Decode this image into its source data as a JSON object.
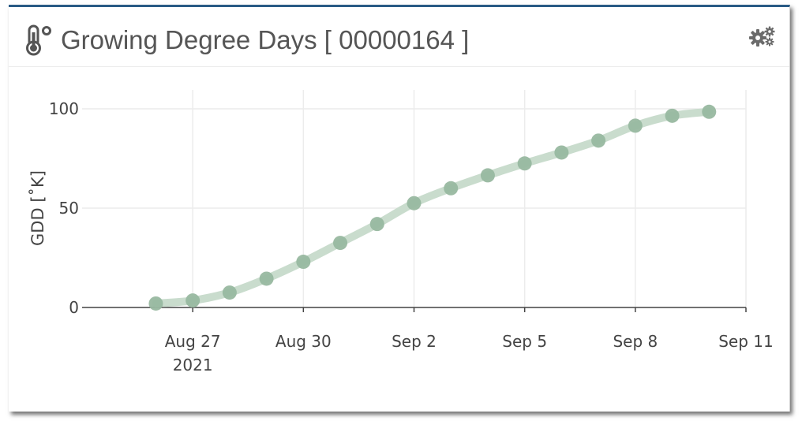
{
  "header": {
    "title": "Growing Degree Days [ 00000164 ]",
    "title_icon": "thermometer-degree-icon",
    "settings_icon": "gears-icon"
  },
  "colors": {
    "accent_border": "#2a5b86",
    "series_line": "#c9dccd",
    "series_marker": "#98b8a0",
    "text": "#444444"
  },
  "chart_data": {
    "type": "line",
    "ylabel": "GDD [˚K]",
    "xlabel": "",
    "ylim": [
      -3,
      104
    ],
    "xlim": [
      "2021-08-24",
      "2021-09-11"
    ],
    "yticks": [
      0,
      50,
      100
    ],
    "ytick_labels": [
      "0",
      "50",
      "100"
    ],
    "xticks": [
      "2021-08-27",
      "2021-08-30",
      "2021-09-02",
      "2021-09-05",
      "2021-09-08",
      "2021-09-11"
    ],
    "xtick_labels": [
      "Aug 27",
      "Aug 30",
      "Sep 2",
      "Sep 5",
      "Sep 8",
      "Sep 11"
    ],
    "xtick_sublabel": "2021",
    "grid": true,
    "legend": "none",
    "series": [
      {
        "x": [
          "2021-08-26",
          "2021-08-27",
          "2021-08-28",
          "2021-08-29",
          "2021-08-30",
          "2021-08-31",
          "2021-09-01",
          "2021-09-02",
          "2021-09-03",
          "2021-09-04",
          "2021-09-05",
          "2021-09-06",
          "2021-09-07",
          "2021-09-08",
          "2021-09-09",
          "2021-09-10"
        ],
        "values": [
          2,
          3.5,
          7.5,
          14.5,
          23,
          32.5,
          42,
          52.5,
          60,
          66.5,
          72.5,
          78,
          84,
          91.5,
          96.5,
          98.5
        ]
      }
    ]
  }
}
